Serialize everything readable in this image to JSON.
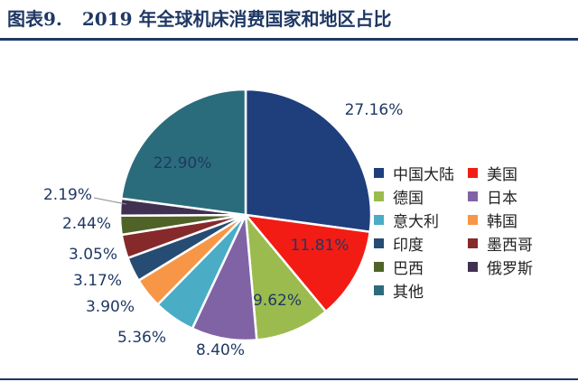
{
  "figure_label": "图表9.",
  "title": "2019 年全球机床消费国家和地区占比",
  "chart_data": {
    "type": "pie",
    "title": "2019 年全球机床消费国家和地区占比",
    "legend_position": "right",
    "start_angle_deg": 0,
    "direction": "clockwise",
    "slices": [
      {
        "label": "中国大陆",
        "value": 27.16,
        "value_label": "27.16%",
        "color": "#1f3e7c"
      },
      {
        "label": "美国",
        "value": 11.81,
        "value_label": "11.81%",
        "color": "#f21c14"
      },
      {
        "label": "德国",
        "value": 9.62,
        "value_label": "9.62%",
        "color": "#9bbb4f"
      },
      {
        "label": "日本",
        "value": 8.4,
        "value_label": "8.40%",
        "color": "#8063a5"
      },
      {
        "label": "意大利",
        "value": 5.36,
        "value_label": "5.36%",
        "color": "#4bacc6"
      },
      {
        "label": "韩国",
        "value": 3.9,
        "value_label": "3.90%",
        "color": "#f79646"
      },
      {
        "label": "印度",
        "value": 3.17,
        "value_label": "3.17%",
        "color": "#264c73"
      },
      {
        "label": "墨西哥",
        "value": 3.05,
        "value_label": "3.05%",
        "color": "#86292b"
      },
      {
        "label": "巴西",
        "value": 2.44,
        "value_label": "2.44%",
        "color": "#4f6228"
      },
      {
        "label": "俄罗斯",
        "value": 2.19,
        "value_label": "2.19%",
        "color": "#403152"
      },
      {
        "label": "其他",
        "value": 22.9,
        "value_label": "22.90%",
        "color": "#2b6c7c"
      }
    ]
  }
}
